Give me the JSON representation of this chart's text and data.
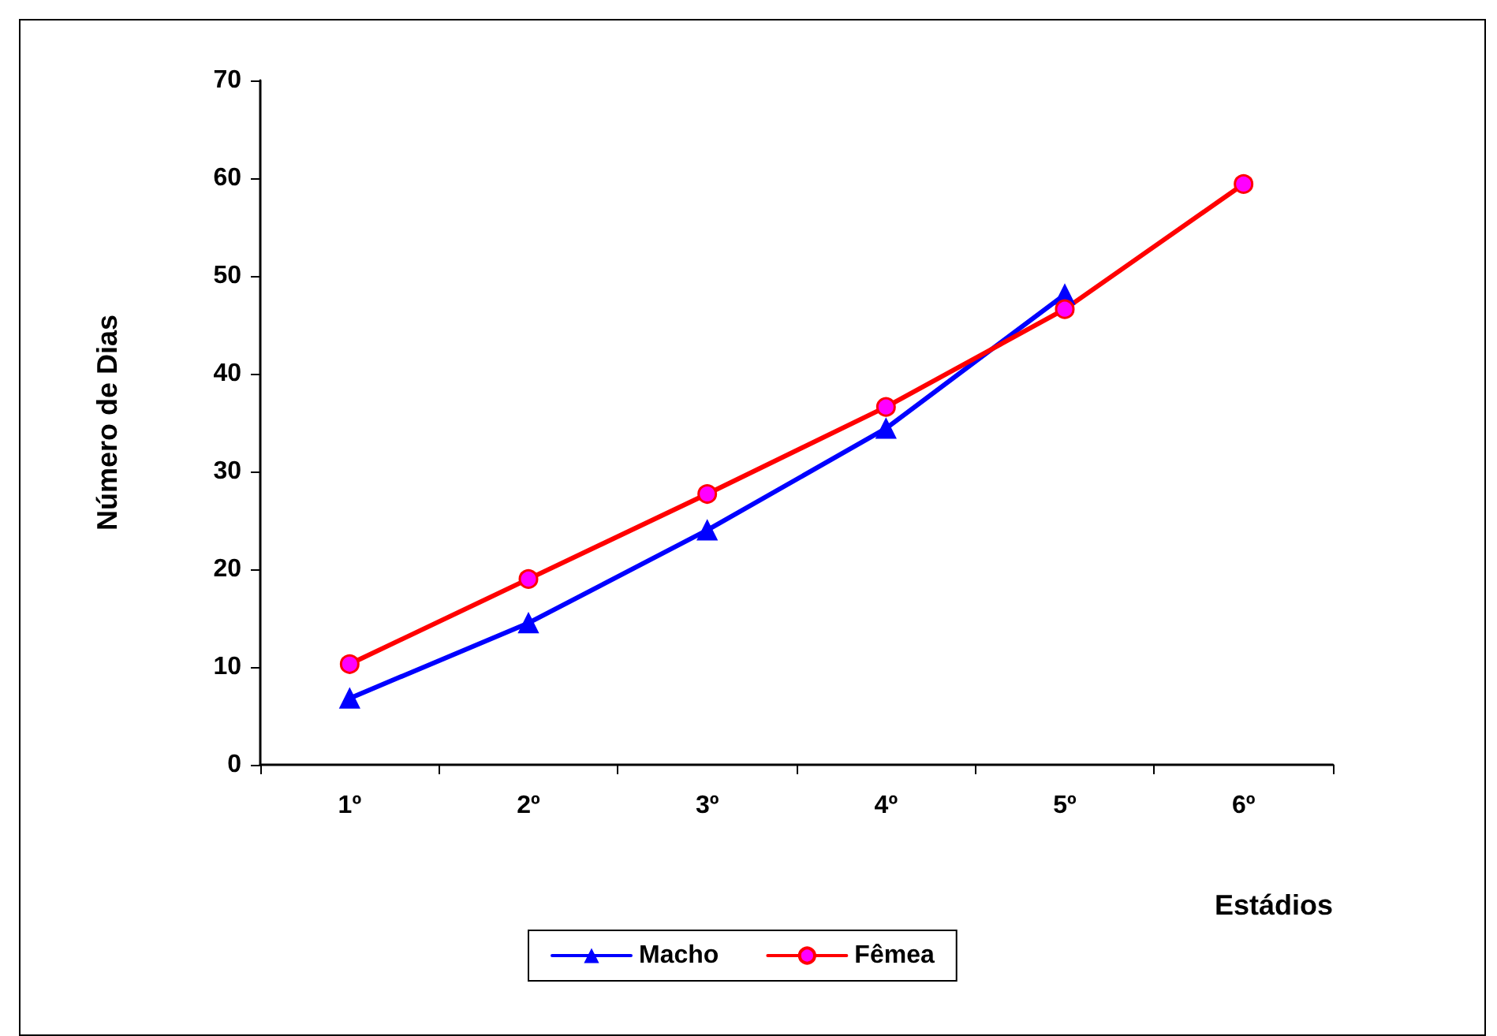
{
  "chart_data": {
    "type": "line",
    "xlabel": "Estádios",
    "ylabel": "Número de Dias",
    "categories": [
      "1º",
      "2º",
      "3º",
      "4º",
      "5º",
      "6º"
    ],
    "series": [
      {
        "name": "Macho",
        "color": "#0000ff",
        "marker": "triangle",
        "values": [
          6.8,
          14.5,
          24.0,
          34.4,
          48.1,
          null
        ]
      },
      {
        "name": "Fêmea",
        "color": "#ff0000",
        "marker": "circle",
        "values": [
          10.3,
          19.0,
          27.7,
          36.6,
          46.6,
          59.4
        ]
      }
    ],
    "ylim": [
      0,
      70
    ],
    "yticks": [
      0,
      10,
      20,
      30,
      40,
      50,
      60,
      70
    ],
    "grid": false,
    "legend": "bottom"
  }
}
